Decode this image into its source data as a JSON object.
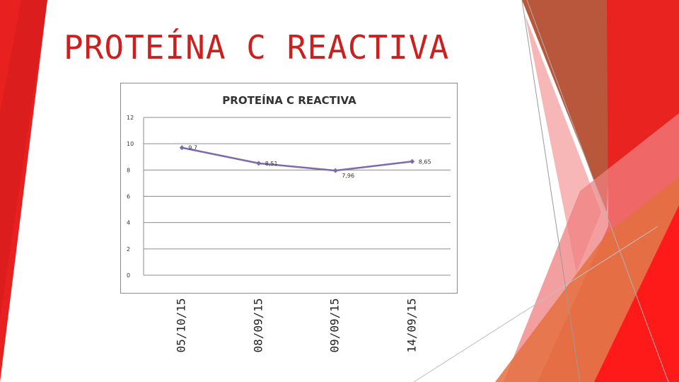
{
  "slide": {
    "title": "PROTEÍNA C REACTIVA"
  },
  "colors": {
    "accent_red": "#e8201f",
    "title_red": "#cc1f1f",
    "series_line": "#7e6aa8",
    "gridline": "#8c8c8c"
  },
  "chart_data": {
    "type": "line",
    "title": "PROTEÍNA C REACTIVA",
    "categories": [
      "05/10/15",
      "08/09/15",
      "09/09/15",
      "14/09/15"
    ],
    "series": [
      {
        "values": [
          9.7,
          8.51,
          7.96,
          8.65
        ],
        "labels": [
          "9,7",
          "8,51",
          "7,96",
          "8,65"
        ]
      }
    ],
    "ylim": [
      0,
      12
    ],
    "yticks": [
      0,
      2,
      4,
      6,
      8,
      10,
      12
    ],
    "grid": true,
    "legend": "none"
  }
}
